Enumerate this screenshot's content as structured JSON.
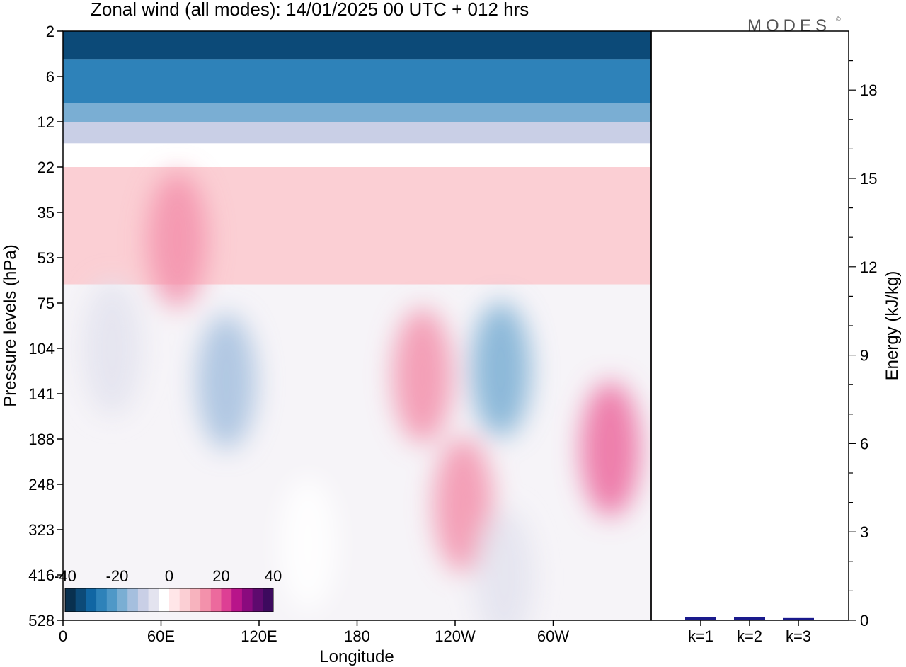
{
  "title": "Zonal wind (all modes):  14/01/2025  00 UTC  + 012 hrs",
  "logo": "MODES",
  "logo_mark": "©",
  "chart_data": [
    {
      "type": "heatmap",
      "field": "zonal wind",
      "xlabel": "Longitude",
      "ylabel": "Pressure levels (hPa)",
      "x_ticks": [
        "0",
        "60E",
        "120E",
        "180",
        "120W",
        "60W"
      ],
      "y_ticks": [
        "2",
        "6",
        "12",
        "22",
        "35",
        "53",
        "75",
        "104",
        "141",
        "188",
        "248",
        "323",
        "416",
        "528"
      ],
      "y_scale": "log-pressure (inverted)",
      "colorbar": {
        "labels": [
          "-40",
          "-20",
          "0",
          "20",
          "40"
        ],
        "levels": [
          -40,
          40
        ],
        "colors": [
          "#08304f",
          "#0c4a78",
          "#1166a3",
          "#2e82b9",
          "#4f98c7",
          "#7aaed3",
          "#a5bfde",
          "#c9cfe6",
          "#e3e3ef",
          "#ffffff",
          "#ffe6e8",
          "#fbcfd4",
          "#f7b3be",
          "#f391ab",
          "#ec6a9d",
          "#dd3f94",
          "#b8148a",
          "#8a0a7e",
          "#5e0a6e",
          "#3d0a5e"
        ]
      },
      "bands": [
        {
          "p_top": 2,
          "p_bottom": 4,
          "value": -36
        },
        {
          "p_top": 4,
          "p_bottom": 9,
          "value": -28
        },
        {
          "p_top": 9,
          "p_bottom": 12,
          "value": -20
        },
        {
          "p_top": 12,
          "p_bottom": 16,
          "value": -10
        },
        {
          "p_top": 16,
          "p_bottom": 22,
          "value": -3
        },
        {
          "p_top": 22,
          "p_bottom": 35,
          "value": 4
        },
        {
          "p_top": 35,
          "p_bottom": 65,
          "value": 7
        },
        {
          "p_top": 65,
          "p_bottom": 528,
          "value": 0
        }
      ],
      "features": [
        {
          "lon": 30,
          "p": 104,
          "value": -8
        },
        {
          "lon": 100,
          "p": 130,
          "value": -14
        },
        {
          "lon": 220,
          "p": 125,
          "value": 14
        },
        {
          "lon": 268,
          "p": 120,
          "value": -18
        },
        {
          "lon": 335,
          "p": 200,
          "value": 16
        },
        {
          "lon": 245,
          "p": 280,
          "value": 12
        },
        {
          "lon": 70,
          "p": 45,
          "value": 12
        },
        {
          "lon": 150,
          "p": 350,
          "value": -3
        },
        {
          "lon": 270,
          "p": 420,
          "value": -6
        }
      ]
    },
    {
      "type": "bar",
      "categories": [
        "k=1",
        "k=2",
        "k=3"
      ],
      "values": [
        0.08,
        0.06,
        0.04
      ],
      "ylabel": "Energy (kJ/kg)",
      "y_ticks": [
        "0",
        "3",
        "6",
        "9",
        "12",
        "15",
        "18"
      ],
      "ylim": [
        0,
        20
      ],
      "bar_color": "#1a1a8c"
    }
  ]
}
